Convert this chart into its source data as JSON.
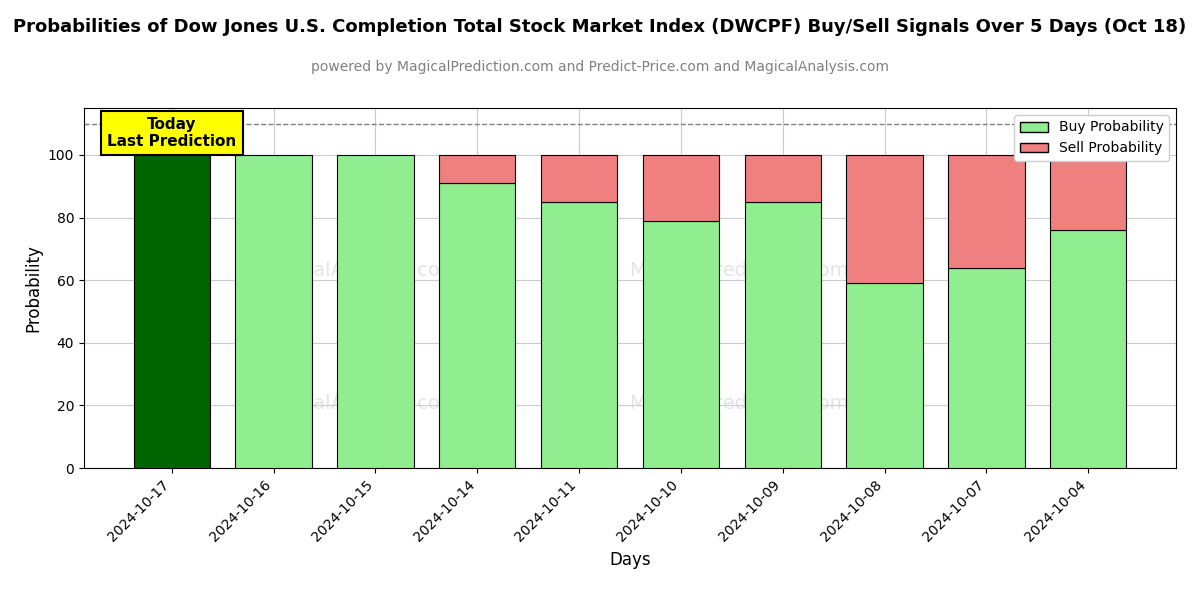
{
  "title": "Probabilities of Dow Jones U.S. Completion Total Stock Market Index (DWCPF) Buy/Sell Signals Over 5 Days (Oct 18)",
  "subtitle": "powered by MagicalPrediction.com and Predict-Price.com and MagicalAnalysis.com",
  "xlabel": "Days",
  "ylabel": "Probability",
  "categories": [
    "2024-10-17",
    "2024-10-16",
    "2024-10-15",
    "2024-10-14",
    "2024-10-11",
    "2024-10-10",
    "2024-10-09",
    "2024-10-08",
    "2024-10-07",
    "2024-10-04"
  ],
  "buy_values": [
    100,
    100,
    100,
    91,
    85,
    79,
    85,
    59,
    64,
    76
  ],
  "sell_values": [
    0,
    0,
    0,
    9,
    15,
    21,
    15,
    41,
    36,
    24
  ],
  "today_bar_color": "#006400",
  "buy_bar_color": "#90EE90",
  "sell_bar_color": "#F08080",
  "ylim": [
    0,
    115
  ],
  "yticks": [
    0,
    20,
    40,
    60,
    80,
    100
  ],
  "dashed_line_y": 110,
  "legend_buy_label": "Buy Probability",
  "legend_sell_label": "Sell Probability",
  "today_label": "Today\nLast Prediction",
  "today_box_color": "yellow",
  "today_box_edgecolor": "black",
  "background_color": "white",
  "grid_color": "#cccccc",
  "watermark1_text": "MagicalAnalysis.com",
  "watermark2_text": "MagicalPrediction.com",
  "title_fontsize": 13,
  "subtitle_fontsize": 10,
  "bar_width": 0.75
}
